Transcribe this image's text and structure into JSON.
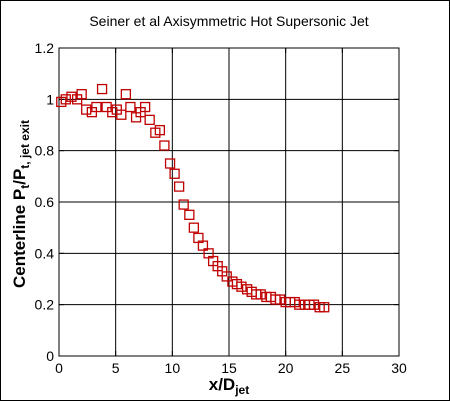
{
  "chart_data": {
    "type": "scatter",
    "title": "Seiner et al Axisymmetric Hot Supersonic Jet",
    "xlabel": {
      "main": "x/D",
      "sub": "jet"
    },
    "ylabel": {
      "main": "Centerline P",
      "sub1": "t",
      "mid": "/P",
      "sub2": "t, jet exit"
    },
    "xlim": [
      0,
      30
    ],
    "ylim": [
      0,
      1.2
    ],
    "xticks": [
      "0",
      "5",
      "10",
      "15",
      "20",
      "25",
      "30"
    ],
    "yticks": [
      "0",
      "0.2",
      "0.4",
      "0.6",
      "0.8",
      "1",
      "1.2"
    ],
    "grid": true,
    "marker": "open-square",
    "marker_color": "#c00000",
    "series": [
      {
        "x": [
          0.2,
          0.6,
          1.1,
          1.6,
          2.0,
          2.4,
          2.9,
          3.3,
          3.8,
          4.2,
          4.7,
          5.1,
          5.5,
          5.9,
          6.3,
          6.8,
          7.2,
          7.6,
          8.0,
          8.5,
          8.9,
          9.3,
          9.8,
          10.2,
          10.6,
          11.0,
          11.5,
          11.9,
          12.3,
          12.7,
          13.2,
          13.6,
          14.0,
          14.4,
          14.8,
          15.3,
          15.7,
          16.1,
          16.6,
          17.0,
          17.4,
          17.8,
          18.3,
          18.7,
          19.1,
          19.5,
          20.0,
          20.4,
          20.8,
          21.2,
          21.7,
          22.1,
          22.5,
          23.0,
          23.4
        ],
        "y": [
          0.99,
          1.0,
          1.01,
          1.0,
          1.02,
          0.96,
          0.95,
          0.97,
          1.04,
          0.97,
          0.95,
          0.96,
          0.94,
          1.02,
          0.97,
          0.93,
          0.95,
          0.97,
          0.92,
          0.87,
          0.88,
          0.82,
          0.75,
          0.71,
          0.66,
          0.59,
          0.55,
          0.5,
          0.46,
          0.43,
          0.4,
          0.37,
          0.35,
          0.33,
          0.31,
          0.29,
          0.28,
          0.27,
          0.26,
          0.25,
          0.24,
          0.24,
          0.23,
          0.23,
          0.22,
          0.22,
          0.21,
          0.21,
          0.21,
          0.2,
          0.2,
          0.2,
          0.2,
          0.19,
          0.19
        ]
      }
    ]
  }
}
